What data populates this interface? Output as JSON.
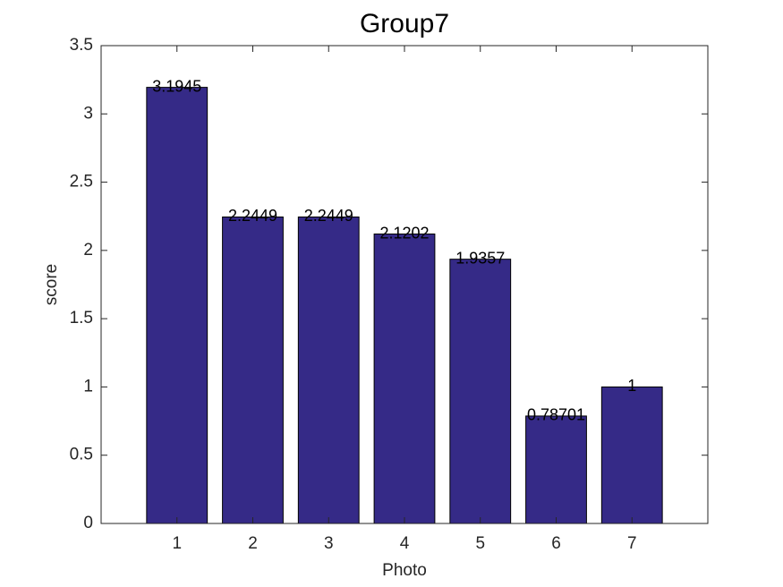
{
  "chart_data": {
    "type": "bar",
    "title": "Group7",
    "xlabel": "Photo",
    "ylabel": "score",
    "x": [
      1,
      2,
      3,
      4,
      5,
      6,
      7
    ],
    "values": [
      3.1945,
      2.2449,
      2.2449,
      2.1202,
      1.9357,
      0.78701,
      1
    ],
    "color": "#352a87",
    "xlim": [
      0,
      8
    ],
    "xticks": [
      1,
      2,
      3,
      4,
      5,
      6,
      7
    ],
    "ylim": [
      0,
      3.5
    ],
    "yticks": [
      0,
      0.5,
      1,
      1.5,
      2,
      2.5,
      3,
      3.5
    ],
    "grid": false
  }
}
